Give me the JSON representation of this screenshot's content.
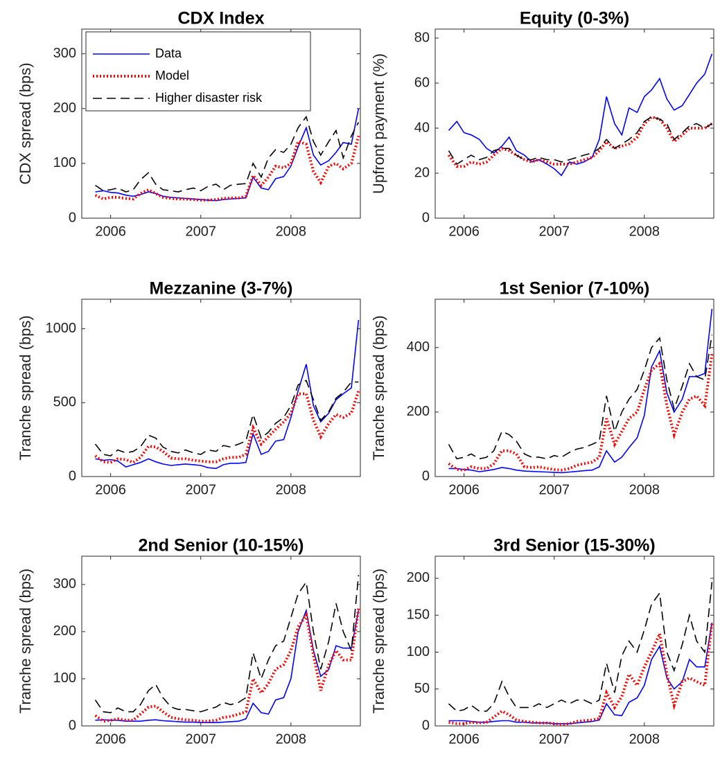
{
  "chart_data": [
    {
      "type": "line",
      "title": "CDX Index",
      "ylabel": "CDX spread (bps)",
      "legend": "northwest",
      "x": [
        2005.83,
        2005.92,
        2006.0,
        2006.08,
        2006.17,
        2006.25,
        2006.33,
        2006.42,
        2006.5,
        2006.58,
        2006.67,
        2006.75,
        2006.83,
        2006.92,
        2007.0,
        2007.08,
        2007.17,
        2007.25,
        2007.33,
        2007.42,
        2007.5,
        2007.58,
        2007.67,
        2007.75,
        2007.83,
        2007.92,
        2008.0,
        2008.08,
        2008.17,
        2008.25,
        2008.33,
        2008.42,
        2008.5,
        2008.58,
        2008.67,
        2008.75
      ],
      "xlim": [
        2005.68,
        2008.77
      ],
      "xticks": [
        2006,
        2007,
        2008
      ],
      "ylim": [
        0,
        345
      ],
      "yticks": [
        0,
        100,
        200,
        300
      ],
      "series": [
        {
          "name": "Data",
          "color": "#0000ff",
          "linestyle": "solid",
          "values": [
            48,
            50,
            47,
            46,
            42,
            40,
            43,
            48,
            45,
            40,
            38,
            37,
            36,
            35,
            34,
            33,
            32,
            34,
            35,
            36,
            37,
            75,
            55,
            52,
            72,
            76,
            95,
            130,
            165,
            115,
            97,
            105,
            120,
            138,
            135,
            200
          ]
        },
        {
          "name": "Model",
          "color": "#ff0000",
          "linestyle": "dotted",
          "values": [
            42,
            35,
            38,
            38,
            36,
            35,
            45,
            52,
            45,
            38,
            36,
            35,
            35,
            34,
            33,
            33,
            34,
            36,
            37,
            37,
            40,
            78,
            60,
            75,
            95,
            92,
            100,
            140,
            135,
            85,
            65,
            95,
            100,
            90,
            100,
            150
          ]
        },
        {
          "name": "Higher disaster risk",
          "color": "#000000",
          "linestyle": "dashed",
          "values": [
            60,
            50,
            52,
            55,
            48,
            52,
            70,
            83,
            62,
            52,
            50,
            48,
            52,
            55,
            50,
            58,
            62,
            52,
            60,
            62,
            63,
            100,
            75,
            110,
            125,
            120,
            135,
            165,
            185,
            140,
            115,
            140,
            160,
            110,
            150,
            175
          ]
        }
      ]
    },
    {
      "type": "line",
      "title": "Equity (0-3%)",
      "ylabel": "Upfront payment (%)",
      "x": [
        2005.83,
        2005.92,
        2006.0,
        2006.08,
        2006.17,
        2006.25,
        2006.33,
        2006.42,
        2006.5,
        2006.58,
        2006.67,
        2006.75,
        2006.83,
        2006.92,
        2007.0,
        2007.08,
        2007.17,
        2007.25,
        2007.33,
        2007.42,
        2007.5,
        2007.58,
        2007.67,
        2007.75,
        2007.83,
        2007.92,
        2008.0,
        2008.08,
        2008.17,
        2008.25,
        2008.33,
        2008.42,
        2008.5,
        2008.58,
        2008.67,
        2008.75
      ],
      "xlim": [
        2005.68,
        2008.77
      ],
      "xticks": [
        2006,
        2007,
        2008
      ],
      "ylim": [
        0,
        84
      ],
      "yticks": [
        0,
        20,
        40,
        60,
        80
      ],
      "series": [
        {
          "color": "#0000ff",
          "linestyle": "solid",
          "values": [
            39,
            43,
            38,
            37,
            35,
            31,
            29,
            32,
            36,
            30,
            28,
            25,
            26,
            24,
            22,
            19,
            25,
            24,
            25,
            27,
            35,
            54,
            42,
            37,
            49,
            47,
            54,
            57,
            62,
            53,
            48,
            50,
            55,
            60,
            64,
            73
          ]
        },
        {
          "color": "#ff0000",
          "linestyle": "dotted",
          "values": [
            28,
            23,
            23,
            25,
            24,
            25,
            28,
            31,
            30,
            28,
            26,
            25,
            26,
            25,
            24,
            24,
            24,
            25,
            26,
            27,
            30,
            34,
            31,
            32,
            33,
            36,
            42,
            45,
            44,
            40,
            34,
            37,
            40,
            40,
            40,
            42
          ]
        },
        {
          "color": "#000000",
          "linestyle": "dashed",
          "values": [
            30,
            24,
            26,
            28,
            26,
            27,
            30,
            31,
            31,
            28,
            26,
            26,
            27,
            26,
            26,
            25,
            26,
            27,
            28,
            29,
            31,
            35,
            31,
            33,
            35,
            38,
            43,
            45,
            44,
            42,
            35,
            38,
            41,
            42,
            40,
            42
          ]
        }
      ]
    },
    {
      "type": "line",
      "title": "Mezzanine (3-7%)",
      "ylabel": "Tranche spread (bps)",
      "x": [
        2005.83,
        2005.92,
        2006.0,
        2006.08,
        2006.17,
        2006.25,
        2006.33,
        2006.42,
        2006.5,
        2006.58,
        2006.67,
        2006.75,
        2006.83,
        2006.92,
        2007.0,
        2007.08,
        2007.17,
        2007.25,
        2007.33,
        2007.42,
        2007.5,
        2007.58,
        2007.67,
        2007.75,
        2007.83,
        2007.92,
        2008.0,
        2008.08,
        2008.17,
        2008.25,
        2008.33,
        2008.42,
        2008.5,
        2008.58,
        2008.67,
        2008.75
      ],
      "xlim": [
        2005.68,
        2008.77
      ],
      "xticks": [
        2006,
        2007,
        2008
      ],
      "ylim": [
        0,
        1200
      ],
      "yticks": [
        0,
        500,
        1000
      ],
      "series": [
        {
          "color": "#0000ff",
          "linestyle": "solid",
          "values": [
            120,
            110,
            115,
            105,
            65,
            80,
            95,
            120,
            100,
            85,
            75,
            80,
            85,
            80,
            75,
            60,
            55,
            80,
            90,
            90,
            95,
            290,
            150,
            170,
            240,
            250,
            400,
            580,
            760,
            480,
            370,
            430,
            520,
            560,
            600,
            1060
          ]
        },
        {
          "color": "#ff0000",
          "linestyle": "dotted",
          "values": [
            140,
            100,
            95,
            120,
            115,
            95,
            130,
            205,
            200,
            170,
            125,
            120,
            120,
            110,
            105,
            100,
            100,
            120,
            130,
            130,
            150,
            330,
            220,
            270,
            320,
            370,
            430,
            560,
            560,
            380,
            270,
            360,
            420,
            400,
            430,
            580
          ]
        },
        {
          "color": "#000000",
          "linestyle": "dashed",
          "values": [
            220,
            150,
            140,
            180,
            160,
            170,
            200,
            280,
            260,
            200,
            170,
            160,
            180,
            160,
            150,
            180,
            170,
            210,
            200,
            220,
            240,
            420,
            260,
            300,
            360,
            400,
            480,
            620,
            650,
            520,
            380,
            440,
            530,
            570,
            640,
            640
          ]
        }
      ]
    },
    {
      "type": "line",
      "title": "1st Senior (7-10%)",
      "ylabel": "Tranche spread (bps)",
      "x": [
        2005.83,
        2005.92,
        2006.0,
        2006.08,
        2006.17,
        2006.25,
        2006.33,
        2006.42,
        2006.5,
        2006.58,
        2006.67,
        2006.75,
        2006.83,
        2006.92,
        2007.0,
        2007.08,
        2007.17,
        2007.25,
        2007.33,
        2007.42,
        2007.5,
        2007.58,
        2007.67,
        2007.75,
        2007.83,
        2007.92,
        2008.0,
        2008.08,
        2008.17,
        2008.25,
        2008.33,
        2008.42,
        2008.5,
        2008.58,
        2008.67,
        2008.75
      ],
      "xlim": [
        2005.68,
        2008.77
      ],
      "xticks": [
        2006,
        2007,
        2008
      ],
      "ylim": [
        0,
        550
      ],
      "yticks": [
        0,
        200,
        400
      ],
      "series": [
        {
          "color": "#0000ff",
          "linestyle": "solid",
          "values": [
            25,
            25,
            22,
            20,
            15,
            18,
            22,
            28,
            25,
            20,
            17,
            16,
            15,
            14,
            13,
            12,
            14,
            16,
            18,
            20,
            30,
            80,
            45,
            60,
            90,
            120,
            190,
            340,
            390,
            260,
            200,
            240,
            310,
            310,
            320,
            520
          ]
        },
        {
          "color": "#ff0000",
          "linestyle": "dotted",
          "values": [
            40,
            22,
            20,
            30,
            25,
            25,
            40,
            80,
            80,
            70,
            30,
            28,
            30,
            25,
            22,
            20,
            25,
            35,
            40,
            45,
            60,
            180,
            100,
            140,
            180,
            200,
            270,
            330,
            350,
            220,
            130,
            200,
            240,
            250,
            220,
            380
          ]
        },
        {
          "color": "#000000",
          "linestyle": "dashed",
          "values": [
            100,
            55,
            60,
            70,
            55,
            60,
            80,
            140,
            130,
            110,
            70,
            60,
            60,
            55,
            65,
            60,
            75,
            85,
            90,
            100,
            110,
            250,
            140,
            200,
            240,
            270,
            330,
            400,
            430,
            300,
            210,
            280,
            350,
            310,
            300,
            440
          ]
        }
      ]
    },
    {
      "type": "line",
      "title": "2nd Senior (10-15%)",
      "ylabel": "Tranche spread (bps)",
      "x": [
        2005.83,
        2005.92,
        2006.0,
        2006.08,
        2006.17,
        2006.25,
        2006.33,
        2006.42,
        2006.5,
        2006.58,
        2006.67,
        2006.75,
        2006.83,
        2006.92,
        2007.0,
        2007.08,
        2007.17,
        2007.25,
        2007.33,
        2007.42,
        2007.5,
        2007.58,
        2007.67,
        2007.75,
        2007.83,
        2007.92,
        2008.0,
        2008.08,
        2008.17,
        2008.25,
        2008.33,
        2008.42,
        2008.5,
        2008.58,
        2008.67,
        2008.75
      ],
      "xlim": [
        2005.68,
        2008.77
      ],
      "xticks": [
        2006,
        2007,
        2008
      ],
      "ylim": [
        0,
        360
      ],
      "yticks": [
        0,
        100,
        200,
        300
      ],
      "series": [
        {
          "color": "#0000ff",
          "linestyle": "solid",
          "values": [
            12,
            13,
            12,
            12,
            10,
            10,
            10,
            12,
            13,
            11,
            10,
            9,
            8,
            8,
            7,
            7,
            7,
            8,
            9,
            10,
            15,
            48,
            28,
            25,
            55,
            60,
            100,
            200,
            245,
            160,
            105,
            120,
            170,
            165,
            165,
            245
          ]
        },
        {
          "color": "#ff0000",
          "linestyle": "dotted",
          "values": [
            22,
            10,
            12,
            15,
            12,
            12,
            25,
            40,
            42,
            30,
            18,
            15,
            13,
            12,
            10,
            10,
            12,
            18,
            20,
            25,
            30,
            100,
            70,
            90,
            120,
            130,
            160,
            210,
            235,
            150,
            75,
            130,
            160,
            140,
            140,
            250
          ]
        },
        {
          "color": "#000000",
          "linestyle": "dashed",
          "values": [
            55,
            30,
            28,
            38,
            30,
            30,
            45,
            75,
            88,
            60,
            40,
            35,
            35,
            32,
            30,
            35,
            40,
            50,
            45,
            50,
            60,
            155,
            100,
            140,
            170,
            180,
            230,
            280,
            305,
            200,
            120,
            180,
            260,
            200,
            160,
            320
          ]
        }
      ]
    },
    {
      "type": "line",
      "title": "3rd Senior (15-30%)",
      "ylabel": "Tranche spread (bps)",
      "x": [
        2005.83,
        2005.92,
        2006.0,
        2006.08,
        2006.17,
        2006.25,
        2006.33,
        2006.42,
        2006.5,
        2006.58,
        2006.67,
        2006.75,
        2006.83,
        2006.92,
        2007.0,
        2007.08,
        2007.17,
        2007.25,
        2007.33,
        2007.42,
        2007.5,
        2007.58,
        2007.67,
        2007.75,
        2007.83,
        2007.92,
        2008.0,
        2008.08,
        2008.17,
        2008.25,
        2008.33,
        2008.42,
        2008.5,
        2008.58,
        2008.67,
        2008.75
      ],
      "xlim": [
        2005.68,
        2008.77
      ],
      "xticks": [
        2006,
        2007,
        2008
      ],
      "ylim": [
        0,
        230
      ],
      "yticks": [
        0,
        50,
        100,
        150,
        200
      ],
      "series": [
        {
          "color": "#0000ff",
          "linestyle": "solid",
          "values": [
            7,
            7,
            7,
            6,
            5,
            5,
            6,
            7,
            7,
            5,
            5,
            4,
            4,
            4,
            3,
            3,
            3,
            4,
            5,
            6,
            8,
            30,
            15,
            14,
            32,
            38,
            55,
            90,
            108,
            65,
            50,
            60,
            90,
            80,
            80,
            140
          ]
        },
        {
          "color": "#ff0000",
          "linestyle": "dotted",
          "values": [
            5,
            3,
            3,
            5,
            4,
            5,
            12,
            20,
            15,
            8,
            6,
            5,
            4,
            4,
            3,
            2,
            3,
            6,
            7,
            8,
            10,
            45,
            25,
            40,
            70,
            55,
            80,
            100,
            125,
            70,
            28,
            60,
            65,
            60,
            55,
            140
          ]
        },
        {
          "color": "#000000",
          "linestyle": "dashed",
          "values": [
            30,
            20,
            22,
            28,
            20,
            20,
            30,
            60,
            40,
            25,
            25,
            25,
            30,
            25,
            30,
            35,
            30,
            35,
            35,
            30,
            35,
            85,
            45,
            95,
            115,
            100,
            130,
            165,
            180,
            100,
            75,
            110,
            150,
            115,
            100,
            195
          ]
        }
      ]
    }
  ]
}
